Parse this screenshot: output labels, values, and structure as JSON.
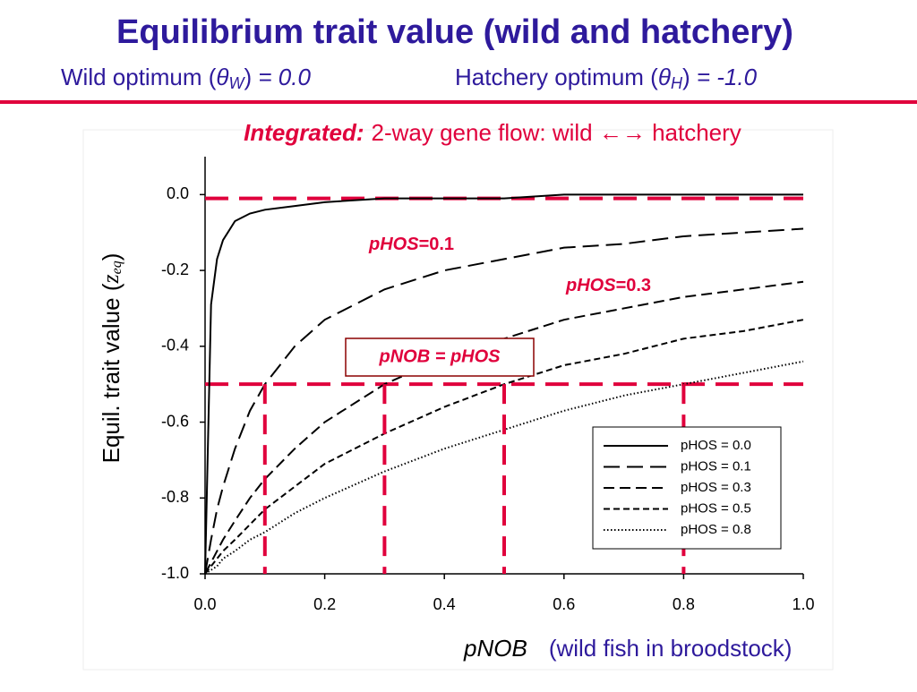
{
  "header": {
    "title": "Equilibrium trait value (wild and hatchery)",
    "subtitle_left": [
      "Wild optimum (",
      "θ",
      "W",
      ")",
      " = 0.0"
    ],
    "subtitle_right": [
      "Hatchery optimum (",
      "θ",
      "H",
      ")",
      " = -1.0"
    ]
  },
  "chart_data": {
    "type": "line",
    "subtitle": [
      "Integrated:",
      "2-way gene flow:  wild ←→ hatchery"
    ],
    "y_label": [
      "Equil. trait value (",
      "z",
      "eq",
      ")"
    ],
    "x_label": [
      "pNOB",
      "(wild fish in broodstock)"
    ],
    "x": [
      0,
      0.01,
      0.02,
      0.03,
      0.05,
      0.075,
      0.1,
      0.15,
      0.2,
      0.3,
      0.4,
      0.5,
      0.6,
      0.7,
      0.8,
      0.9,
      1.0
    ],
    "series": [
      {
        "name": "pHOS = 0.0",
        "color": "#000000",
        "dash": "none",
        "values": [
          -1,
          -0.29,
          -0.17,
          -0.12,
          -0.07,
          -0.05,
          -0.04,
          -0.03,
          -0.02,
          -0.01,
          -0.01,
          -0.01,
          0,
          0,
          0,
          0,
          0
        ]
      },
      {
        "name": "pHOS = 0.1",
        "color": "#000000",
        "dash": "18 8",
        "values": [
          -1,
          -0.91,
          -0.83,
          -0.77,
          -0.67,
          -0.57,
          -0.5,
          -0.4,
          -0.33,
          -0.25,
          -0.2,
          -0.17,
          -0.14,
          -0.13,
          -0.11,
          -0.1,
          -0.09
        ]
      },
      {
        "name": "pHOS = 0.3",
        "color": "#000000",
        "dash": "12 6",
        "values": [
          -1,
          -0.97,
          -0.94,
          -0.91,
          -0.86,
          -0.8,
          -0.75,
          -0.67,
          -0.6,
          -0.5,
          -0.43,
          -0.38,
          -0.33,
          -0.3,
          -0.27,
          -0.25,
          -0.23
        ]
      },
      {
        "name": "pHOS = 0.5",
        "color": "#000000",
        "dash": "7 4",
        "values": [
          -1,
          -0.98,
          -0.96,
          -0.94,
          -0.91,
          -0.87,
          -0.83,
          -0.77,
          -0.71,
          -0.63,
          -0.56,
          -0.5,
          -0.45,
          -0.42,
          -0.38,
          -0.36,
          -0.33
        ]
      },
      {
        "name": "pHOS = 0.8",
        "color": "#000000",
        "dash": "1.5 2.5",
        "values": [
          -1,
          -0.99,
          -0.98,
          -0.96,
          -0.94,
          -0.91,
          -0.89,
          -0.84,
          -0.8,
          -0.73,
          -0.67,
          -0.62,
          -0.57,
          -0.53,
          -0.5,
          -0.47,
          -0.44
        ]
      }
    ],
    "reference_color": "#e0003c",
    "reference_y": [
      -0.01,
      -0.5
    ],
    "reference_x": [
      0.1,
      0.3,
      0.5,
      0.8
    ],
    "annotations": [
      [
        "pHOS",
        "=0.1"
      ],
      [
        "pHOS",
        "=0.3"
      ]
    ],
    "box_label": "pNOB = pHOS",
    "xlim": [
      0,
      1
    ],
    "ylim": [
      -1,
      0.1
    ],
    "xticks": [
      {
        "value": 0,
        "label": "0.0"
      },
      {
        "value": 0.2,
        "label": "0.2"
      },
      {
        "value": 0.4,
        "label": "0.4"
      },
      {
        "value": 0.6,
        "label": "0.6"
      },
      {
        "value": 0.8,
        "label": "0.8"
      },
      {
        "value": 1,
        "label": "1.0"
      }
    ],
    "yticks": [
      {
        "value": -1,
        "label": "-1.0"
      },
      {
        "value": -0.8,
        "label": "-0.8"
      },
      {
        "value": -0.6,
        "label": "-0.6"
      },
      {
        "value": -0.4,
        "label": "-0.4"
      },
      {
        "value": -0.2,
        "label": "-0.2"
      },
      {
        "value": 0,
        "label": "0.0"
      }
    ],
    "legend": "lower right"
  }
}
